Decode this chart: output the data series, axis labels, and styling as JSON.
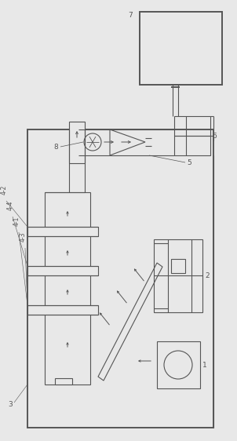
{
  "bg_color": "#e8e8e8",
  "line_color": "#555555",
  "fig_width": 3.02,
  "fig_height": 5.62,
  "dpi": 100
}
